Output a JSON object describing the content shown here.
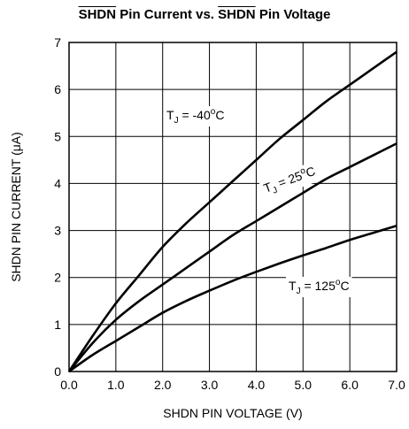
{
  "chart_data": {
    "type": "line",
    "title_overlined_1": "SHDN",
    "title_mid": " Pin Current vs. ",
    "title_overlined_2": "SHDN",
    "title_end": " Pin Voltage",
    "xlabel": "SHDN PIN VOLTAGE (V)",
    "ylabel": "SHDN PIN CURRENT (μA)",
    "xlim": [
      0,
      7
    ],
    "ylim": [
      0,
      7
    ],
    "x_ticks": [
      "0.0",
      "1.0",
      "2.0",
      "3.0",
      "4.0",
      "5.0",
      "6.0",
      "7.0"
    ],
    "y_ticks": [
      "0",
      "1",
      "2",
      "3",
      "4",
      "5",
      "6",
      "7"
    ],
    "grid": true,
    "series": [
      {
        "name": "T_J = -40°C",
        "label_parts": {
          "t": "T",
          "sub": "J",
          "mid": " = -40",
          "sup": "o",
          "end": "C"
        },
        "x": [
          0,
          0.5,
          1,
          1.5,
          2,
          2.5,
          3,
          3.5,
          4,
          4.5,
          5,
          5.5,
          6,
          6.5,
          7
        ],
        "y": [
          0,
          0.75,
          1.45,
          2.05,
          2.65,
          3.15,
          3.6,
          4.05,
          4.5,
          4.95,
          5.35,
          5.75,
          6.1,
          6.45,
          6.8
        ]
      },
      {
        "name": "T_J = 25°C",
        "label_parts": {
          "t": "T",
          "sub": "J",
          "mid": " = 25",
          "sup": "o",
          "end": "C"
        },
        "x": [
          0,
          0.5,
          1,
          1.5,
          2,
          2.5,
          3,
          3.5,
          4,
          4.5,
          5,
          5.5,
          6,
          6.5,
          7
        ],
        "y": [
          0,
          0.6,
          1.1,
          1.5,
          1.85,
          2.2,
          2.55,
          2.9,
          3.2,
          3.5,
          3.8,
          4.1,
          4.35,
          4.6,
          4.85
        ]
      },
      {
        "name": "T_J = 125°C",
        "label_parts": {
          "t": "T",
          "sub": "J",
          "mid": " = 125",
          "sup": "o",
          "end": "C"
        },
        "x": [
          0,
          0.5,
          1,
          1.5,
          2,
          2.5,
          3,
          3.5,
          4,
          4.5,
          5,
          5.5,
          6,
          6.5,
          7
        ],
        "y": [
          0,
          0.35,
          0.65,
          0.95,
          1.25,
          1.5,
          1.72,
          1.93,
          2.12,
          2.3,
          2.47,
          2.63,
          2.8,
          2.95,
          3.1
        ]
      }
    ]
  }
}
